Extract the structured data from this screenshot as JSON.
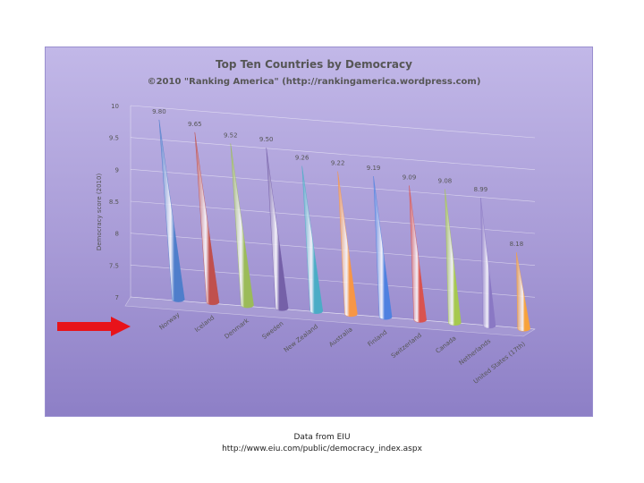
{
  "chart_data": {
    "type": "bar",
    "title": "Top Ten Countries by Democracy",
    "subtitle": "©2010 \"Ranking America\" (http://rankingamerica.wordpress.com)",
    "ylabel": "Democracy score (2010)",
    "xlabel": "",
    "ylim": [
      7,
      10
    ],
    "yticks": [
      "7",
      "7.5",
      "8",
      "8.5",
      "9",
      "9.5",
      "10"
    ],
    "categories": [
      "Norway",
      "Iceland",
      "Denmark",
      "Sweden",
      "New Zealand",
      "Australia",
      "Finland",
      "Switzerland",
      "Canada",
      "Netherlands",
      "United States (17th)"
    ],
    "values": [
      9.8,
      9.65,
      9.52,
      9.5,
      9.26,
      9.22,
      9.19,
      9.09,
      9.08,
      8.99,
      8.18
    ],
    "value_labels": [
      "9.80",
      "9.65",
      "9.52",
      "9.50",
      "9.26",
      "9.22",
      "9.19",
      "9.09",
      "9.08",
      "8.99",
      "8.18"
    ],
    "colors": [
      "#4f7ecb",
      "#c0504d",
      "#9bbb59",
      "#7560a8",
      "#4bacc6",
      "#f79646",
      "#4f81e0",
      "#d9534f",
      "#a6c94f",
      "#8a78c4",
      "#f7a23c"
    ],
    "grid": true,
    "legend": "none"
  },
  "footer": {
    "line1": "Data from EIU",
    "line2": "http://www.eiu.com/public/democracy_index.aspx"
  },
  "annotation": {
    "arrow_color": "#e8131a"
  }
}
